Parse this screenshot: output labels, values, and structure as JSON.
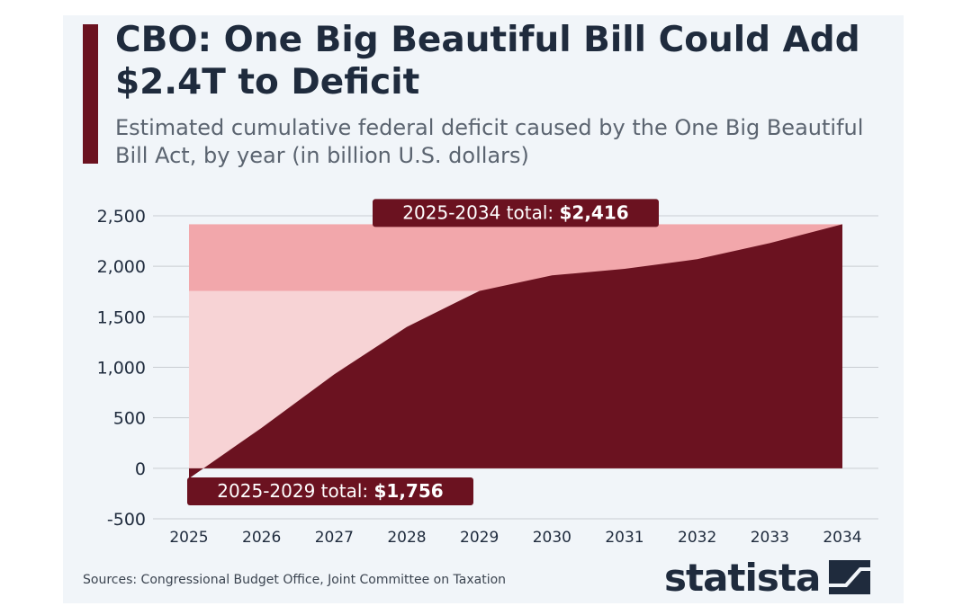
{
  "title": "CBO: One Big Beautiful Bill Could Add $2.4T to Deficit",
  "subtitle": "Estimated cumulative federal deficit caused by the One Big Beautiful Bill Act, by year (in billion U.S. dollars)",
  "source": "Sources: Congressional Budget Office, Joint Committee on Taxation",
  "logo": "statista",
  "colors": {
    "area": "#6b1220",
    "band_total": "#f2a7ab",
    "band_first": "#f7d3d5",
    "label_bg": "#6b1220",
    "grid": "#c9cdd2",
    "text": "#1f2b3d"
  },
  "chart_data": {
    "type": "area",
    "x": [
      "2025",
      "2026",
      "2027",
      "2028",
      "2029",
      "2030",
      "2031",
      "2032",
      "2033",
      "2034"
    ],
    "values": [
      -100,
      400,
      930,
      1400,
      1756,
      1910,
      1975,
      2070,
      2230,
      2416
    ],
    "ylim": [
      -500,
      2500
    ],
    "yticks": [
      -500,
      0,
      500,
      1000,
      1500,
      2000,
      2500
    ],
    "ytick_labels": [
      "-500",
      "0",
      "500",
      "1,000",
      "1,500",
      "2,000",
      "2,500"
    ],
    "grid": true,
    "annotations": [
      {
        "label": "2025-2034 total: ",
        "value": "$2,416",
        "from": "2025",
        "to": "2034",
        "y": 2416
      },
      {
        "label": "2025-2029 total: ",
        "value": "$1,756",
        "from": "2025",
        "to": "2029",
        "y": 1756
      }
    ]
  }
}
